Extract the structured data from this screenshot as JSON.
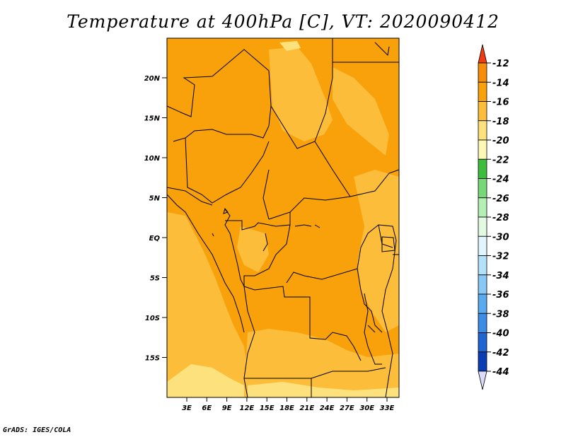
{
  "title": "Temperature at 400hPa [C], VT: 2020090412",
  "credit": "GrADS: IGES/COLA",
  "map": {
    "lat_ticks": [
      "20N",
      "15N",
      "10N",
      "5N",
      "EQ",
      "5S",
      "10S",
      "15S"
    ],
    "lon_ticks": [
      "3E",
      "6E",
      "9E",
      "12E",
      "15E",
      "18E",
      "21E",
      "24E",
      "27E",
      "30E",
      "33E"
    ],
    "fill_colors": {
      "t14_16": "#f8a10a",
      "t16_18": "#fbbd3a",
      "t18_20": "#fde17c"
    }
  },
  "colorbar": {
    "labels": [
      "-12",
      "-14",
      "-16",
      "-18",
      "-20",
      "-22",
      "-24",
      "-26",
      "-28",
      "-30",
      "-32",
      "-34",
      "-36",
      "-38",
      "-40",
      "-42",
      "-44"
    ],
    "colors": [
      "#f0501e",
      "#f58c0a",
      "#f8a10a",
      "#fbbd3a",
      "#fde17c",
      "#fdf8b4",
      "#3cbe3c",
      "#78d878",
      "#b4f0b4",
      "#e1fae1",
      "#e1f5ff",
      "#b4e1fa",
      "#87c8f5",
      "#5aaaf0",
      "#3c8ce6",
      "#1e64d2",
      "#0a3cb4",
      "#0a147d"
    ],
    "top_arrow_color": "#f03c14",
    "bottom_arrow_color": "#dcdcfa"
  }
}
